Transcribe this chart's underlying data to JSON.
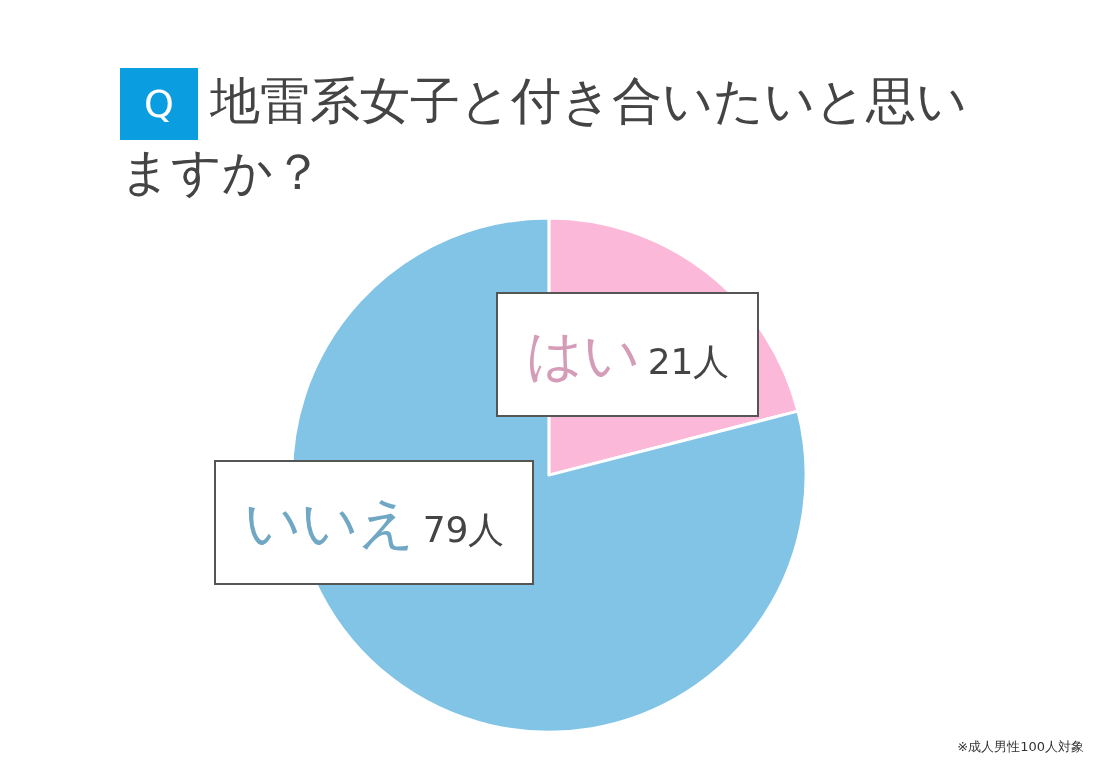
{
  "chart_data": {
    "type": "pie",
    "title": "Q 地雷系女子と付き合いたいと思いますか？",
    "categories": [
      "はい",
      "いいえ"
    ],
    "values": [
      21,
      79
    ],
    "value_labels": [
      "21人",
      "79人"
    ],
    "colors": [
      "#fbb8d8",
      "#82c4e6"
    ],
    "legend": false,
    "annotations": [
      "※成人男性100人対象"
    ]
  }
}
